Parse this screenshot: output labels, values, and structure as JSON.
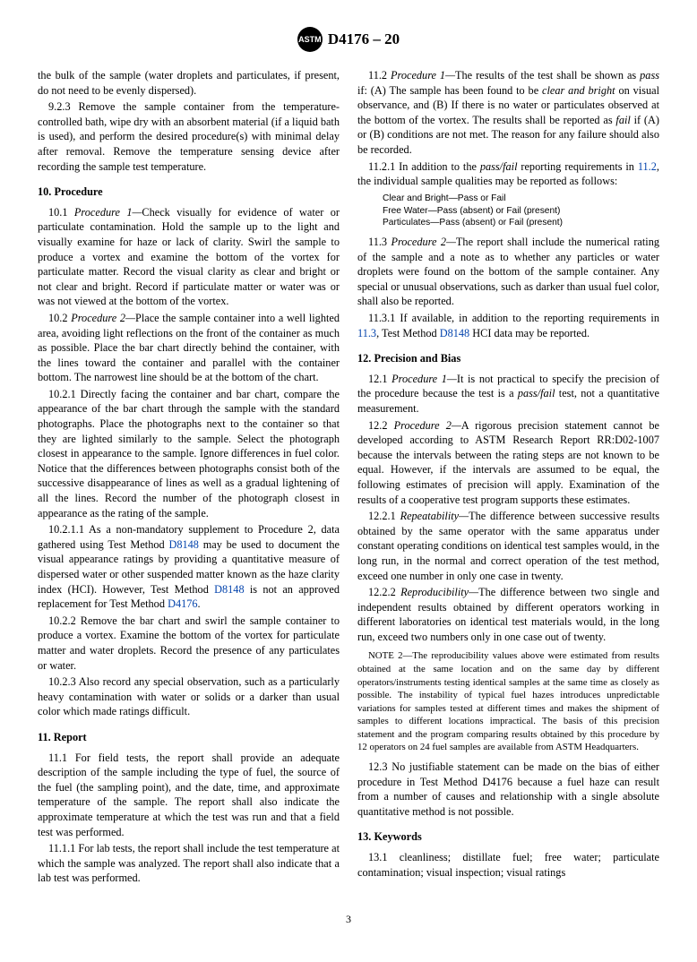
{
  "header": {
    "standard": "D4176 – 20",
    "logo_text": "ASTM"
  },
  "pageNumber": "3",
  "left": {
    "p0": "the bulk of the sample (water droplets and particulates, if present, do not need to be evenly dispersed).",
    "p923": "9.2.3 Remove the sample container from the temperature-controlled bath, wipe dry with an absorbent material (if a liquid bath is used), and perform the desired procedure(s) with minimal delay after removal. Remove the temperature sensing device after recording the sample test temperature.",
    "s10_title": "10. Procedure",
    "p101_a": "10.1 ",
    "p101_b": "Procedure 1—",
    "p101_c": "Check visually for evidence of water or particulate contamination. Hold the sample up to the light and visually examine for haze or lack of clarity. Swirl the sample to produce a vortex and examine the bottom of the vortex for particulate matter. Record the visual clarity as clear and bright or not clear and bright. Record if particulate matter or water was or was not viewed at the bottom of the vortex.",
    "p102_a": "10.2 ",
    "p102_b": "Procedure 2—",
    "p102_c": "Place the sample container into a well lighted area, avoiding light reflections on the front of the container as much as possible. Place the bar chart directly behind the container, with the lines toward the container and parallel with the container bottom. The narrowest line should be at the bottom of the chart.",
    "p1021": "10.2.1 Directly facing the container and bar chart, compare the appearance of the bar chart through the sample with the standard photographs. Place the photographs next to the container so that they are lighted similarly to the sample. Select the photograph closest in appearance to the sample. Ignore differences in fuel color. Notice that the differences between photographs consist both of the successive disappearance of lines as well as a gradual lightening of all the lines. Record the number of the photograph closest in appearance as the rating of the sample.",
    "p10211_a": "10.2.1.1 As a non-mandatory supplement to Procedure 2, data gathered using Test Method ",
    "p10211_b": " may be used to document the visual appearance ratings by providing a quantitative measure of dispersed water or other suspended matter known as the haze clarity index (HCI). However, Test Method ",
    "p10211_c": " is not an approved replacement for Test Method ",
    "p10211_d": ".",
    "ref_d8148": "D8148",
    "ref_d4176": "D4176",
    "p1022": "10.2.2 Remove the bar chart and swirl the sample container to produce a vortex. Examine the bottom of the vortex for particulate matter and water droplets. Record the presence of any particulates or water.",
    "p1023": "10.2.3 Also record any special observation, such as a particularly heavy contamination with water or solids or a darker than usual color which made ratings difficult.",
    "s11_title": "11. Report",
    "p111": "11.1 For field tests, the report shall provide an adequate description of the sample including the type of fuel, the source of the fuel (the sampling point), and the date, time, and approximate temperature of the sample. The report shall also indicate the approximate temperature at which the test was run and that a field test was performed.",
    "p1111": "11.1.1 For lab tests, the report shall include the test temperature at which the sample was analyzed. The report shall also indicate that a lab test was performed."
  },
  "right": {
    "p112_a": "11.2 ",
    "p112_b": "Procedure 1—",
    "p112_c": "The results of the test shall be shown as ",
    "p112_d": "pass",
    "p112_e": " if: (A) The sample has been found to be ",
    "p112_f": "clear and bright",
    "p112_g": " on visual observance, and (B) If there is no water or particulates observed at the bottom of the vortex. The results shall be reported as ",
    "p112_h": "fail",
    "p112_i": " if (A) or (B) conditions are not met. The reason for any failure should also be recorded.",
    "p1121_a": "11.2.1 In addition to the ",
    "p1121_b": "pass/fail",
    "p1121_c": " reporting requirements in ",
    "p1121_d": ", the individual sample qualities may be reported as follows:",
    "ref_112": "11.2",
    "small_line1": "Clear and Bright—Pass or Fail",
    "small_line2": "Free Water—Pass (absent) or Fail (present)",
    "small_line3": "Particulates—Pass (absent) or Fail (present)",
    "p113_a": "11.3 ",
    "p113_b": "Procedure 2—",
    "p113_c": "The report shall include the numerical rating of the sample and a note as to whether any particles or water droplets were found on the bottom of the sample container. Any special or unusual observations, such as darker than usual fuel color, shall also be reported.",
    "p1131_a": "11.3.1 If available, in addition to the reporting requirements in ",
    "p1131_b": ", Test Method ",
    "p1131_c": " HCI data may be reported.",
    "ref_113": "11.3",
    "ref_d8148": "D8148",
    "s12_title": "12. Precision and Bias",
    "p121_a": "12.1 ",
    "p121_b": "Procedure 1—",
    "p121_c": "It is not practical to specify the precision of the procedure because the test is a ",
    "p121_d": "pass/fail",
    "p121_e": " test, not a quantitative measurement.",
    "p122_a": "12.2 ",
    "p122_b": "Procedure 2—",
    "p122_c": "A rigorous precision statement cannot be developed according to ASTM Research Report RR:D02-1007 because the intervals between the rating steps are not known to be equal. However, if the intervals are assumed to be equal, the following estimates of precision will apply. Examination of the results of a cooperative test program supports these estimates.",
    "p1221_a": "12.2.1 ",
    "p1221_b": "Repeatability—",
    "p1221_c": "The difference between successive results obtained by the same operator with the same apparatus under constant operating conditions on identical test samples would, in the long run, in the normal and correct operation of the test method, exceed one number in only one case in twenty.",
    "p1222_a": "12.2.2 ",
    "p1222_b": "Reproducibility—",
    "p1222_c": "The difference between two single and independent results obtained by different operators working in different laboratories on identical test materials would, in the long run, exceed two numbers only in one case out of twenty.",
    "note2_a": "NOTE",
    "note2_b": " 2—The reproducibility values above were estimated from results obtained at the same location and on the same day by different operators/instruments testing identical samples at the same time as closely as possible. The instability of typical fuel hazes introduces unpredictable variations for samples tested at different times and makes the shipment of samples to different locations impractical. The basis of this precision statement and the program comparing results obtained by this procedure by 12 operators on 24 fuel samples are available from ASTM Headquarters.",
    "p123": "12.3 No justifiable statement can be made on the bias of either procedure in Test Method D4176 because a fuel haze can result from a number of causes and relationship with a single absolute quantitative method is not possible.",
    "s13_title": "13. Keywords",
    "p131": "13.1 cleanliness; distillate fuel; free water; particulate contamination; visual inspection; visual ratings"
  }
}
